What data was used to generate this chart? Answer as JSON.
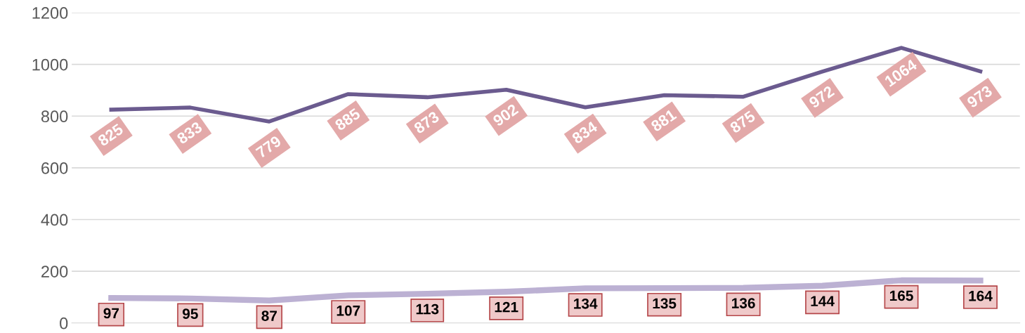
{
  "chart_data": {
    "type": "line",
    "categories": [
      null,
      null,
      null,
      null,
      null,
      null,
      null,
      null,
      null,
      null,
      null,
      null
    ],
    "series": [
      {
        "color": "#6b5b8f",
        "values": [
          825,
          833,
          779,
          885,
          873,
          902,
          834,
          881,
          875,
          972,
          1064,
          973
        ]
      },
      {
        "color": "#bcb1d3",
        "values": [
          97,
          95,
          87,
          107,
          113,
          121,
          134,
          135,
          136,
          144,
          165,
          164
        ]
      }
    ],
    "ylim": [
      0,
      1200
    ],
    "yticks": [
      0,
      200,
      400,
      600,
      800,
      1000,
      1200
    ],
    "grid": "y",
    "data_labels": true,
    "tick_labels": "y",
    "line_style": "solid"
  }
}
